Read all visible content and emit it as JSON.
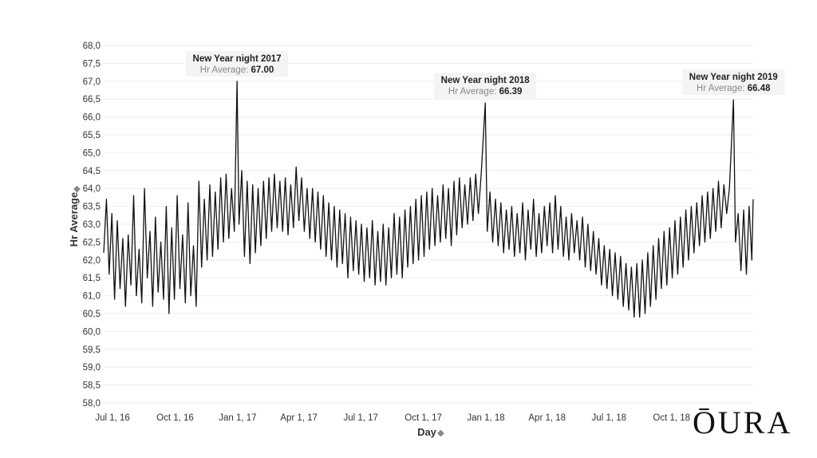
{
  "chart_data": {
    "type": "line",
    "xlabel": "Day",
    "ylabel": "Hr Average",
    "x_range": [
      "2016-06-18",
      "2019-01-29"
    ],
    "ylim": [
      58.0,
      68.0
    ],
    "y_ticks": [
      "68,0",
      "67,5",
      "67,0",
      "66,5",
      "66,0",
      "65,5",
      "65,0",
      "64,5",
      "64,0",
      "63,5",
      "63,0",
      "62,5",
      "62,0",
      "61,5",
      "61,0",
      "60,5",
      "60,0",
      "59,5",
      "59,0",
      "58,5",
      "58,0"
    ],
    "y_tick_values": [
      68.0,
      67.5,
      67.0,
      66.5,
      66.0,
      65.5,
      65.0,
      64.5,
      64.0,
      63.5,
      63.0,
      62.5,
      62.0,
      61.5,
      61.0,
      60.5,
      60.0,
      59.5,
      59.0,
      58.5,
      58.0
    ],
    "x_ticks": [
      {
        "label": "Jul 1, 16",
        "date": "2016-07-01"
      },
      {
        "label": "Oct 1, 16",
        "date": "2016-10-01"
      },
      {
        "label": "Jan 1, 17",
        "date": "2017-01-01"
      },
      {
        "label": "Apr 1, 17",
        "date": "2017-04-01"
      },
      {
        "label": "Jul 1, 17",
        "date": "2017-07-01"
      },
      {
        "label": "Oct 1, 17",
        "date": "2017-10-01"
      },
      {
        "label": "Jan 1, 18",
        "date": "2018-01-01"
      },
      {
        "label": "Apr 1, 18",
        "date": "2018-04-01"
      },
      {
        "label": "Jul 1, 18",
        "date": "2018-07-01"
      },
      {
        "label": "Oct 1, 18",
        "date": "2018-10-01"
      }
    ],
    "grid": true,
    "series": [
      {
        "values_description": "daily average heart rate with weekly oscillation",
        "points": [
          [
            "2016-06-18",
            62.2
          ],
          [
            "2016-06-22",
            63.7
          ],
          [
            "2016-06-26",
            61.6
          ],
          [
            "2016-06-30",
            63.3
          ],
          [
            "2016-07-04",
            60.9
          ],
          [
            "2016-07-08",
            63.1
          ],
          [
            "2016-07-12",
            61.2
          ],
          [
            "2016-07-16",
            62.6
          ],
          [
            "2016-07-20",
            60.7
          ],
          [
            "2016-07-24",
            62.7
          ],
          [
            "2016-07-28",
            61.3
          ],
          [
            "2016-08-01",
            63.8
          ],
          [
            "2016-08-05",
            61.0
          ],
          [
            "2016-08-09",
            62.3
          ],
          [
            "2016-08-13",
            60.8
          ],
          [
            "2016-08-17",
            64.0
          ],
          [
            "2016-08-21",
            61.5
          ],
          [
            "2016-08-25",
            62.8
          ],
          [
            "2016-08-29",
            60.7
          ],
          [
            "2016-09-02",
            63.2
          ],
          [
            "2016-09-06",
            61.1
          ],
          [
            "2016-09-10",
            62.5
          ],
          [
            "2016-09-14",
            60.9
          ],
          [
            "2016-09-18",
            63.5
          ],
          [
            "2016-09-22",
            60.5
          ],
          [
            "2016-09-26",
            62.9
          ],
          [
            "2016-09-30",
            60.9
          ],
          [
            "2016-10-04",
            63.8
          ],
          [
            "2016-10-08",
            61.2
          ],
          [
            "2016-10-12",
            62.7
          ],
          [
            "2016-10-16",
            60.8
          ],
          [
            "2016-10-20",
            63.6
          ],
          [
            "2016-10-24",
            61.0
          ],
          [
            "2016-10-28",
            62.4
          ],
          [
            "2016-11-01",
            60.7
          ],
          [
            "2016-11-05",
            64.2
          ],
          [
            "2016-11-09",
            61.8
          ],
          [
            "2016-11-13",
            63.7
          ],
          [
            "2016-11-17",
            62.0
          ],
          [
            "2016-11-21",
            64.1
          ],
          [
            "2016-11-25",
            62.1
          ],
          [
            "2016-11-29",
            63.9
          ],
          [
            "2016-12-03",
            62.3
          ],
          [
            "2016-12-07",
            64.3
          ],
          [
            "2016-12-11",
            62.5
          ],
          [
            "2016-12-15",
            64.4
          ],
          [
            "2016-12-19",
            62.6
          ],
          [
            "2016-12-23",
            64.0
          ],
          [
            "2016-12-27",
            62.8
          ],
          [
            "2016-12-31",
            67.0
          ],
          [
            "2017-01-03",
            63.0
          ],
          [
            "2017-01-07",
            64.5
          ],
          [
            "2017-01-11",
            62.1
          ],
          [
            "2017-01-15",
            64.2
          ],
          [
            "2017-01-19",
            61.9
          ],
          [
            "2017-01-23",
            64.1
          ],
          [
            "2017-01-27",
            62.2
          ],
          [
            "2017-01-31",
            64.0
          ],
          [
            "2017-02-04",
            62.4
          ],
          [
            "2017-02-08",
            64.2
          ],
          [
            "2017-02-12",
            62.6
          ],
          [
            "2017-02-16",
            64.3
          ],
          [
            "2017-02-20",
            62.8
          ],
          [
            "2017-02-24",
            64.4
          ],
          [
            "2017-02-28",
            62.9
          ],
          [
            "2017-03-04",
            64.2
          ],
          [
            "2017-03-08",
            62.8
          ],
          [
            "2017-03-12",
            64.3
          ],
          [
            "2017-03-16",
            62.7
          ],
          [
            "2017-03-20",
            64.1
          ],
          [
            "2017-03-24",
            62.9
          ],
          [
            "2017-03-28",
            64.6
          ],
          [
            "2017-04-01",
            63.1
          ],
          [
            "2017-04-05",
            64.3
          ],
          [
            "2017-04-09",
            62.8
          ],
          [
            "2017-04-13",
            64.0
          ],
          [
            "2017-04-17",
            62.6
          ],
          [
            "2017-04-21",
            64.0
          ],
          [
            "2017-04-25",
            62.5
          ],
          [
            "2017-04-29",
            63.9
          ],
          [
            "2017-05-03",
            62.3
          ],
          [
            "2017-05-07",
            63.8
          ],
          [
            "2017-05-11",
            62.1
          ],
          [
            "2017-05-15",
            63.6
          ],
          [
            "2017-05-19",
            62.0
          ],
          [
            "2017-05-23",
            63.5
          ],
          [
            "2017-05-27",
            61.8
          ],
          [
            "2017-05-31",
            63.4
          ],
          [
            "2017-06-04",
            61.9
          ],
          [
            "2017-06-08",
            63.3
          ],
          [
            "2017-06-12",
            61.5
          ],
          [
            "2017-06-16",
            63.2
          ],
          [
            "2017-06-20",
            61.7
          ],
          [
            "2017-06-24",
            63.1
          ],
          [
            "2017-06-28",
            61.6
          ],
          [
            "2017-07-02",
            63.0
          ],
          [
            "2017-07-06",
            61.4
          ],
          [
            "2017-07-10",
            62.9
          ],
          [
            "2017-07-14",
            61.5
          ],
          [
            "2017-07-18",
            63.1
          ],
          [
            "2017-07-22",
            61.3
          ],
          [
            "2017-07-26",
            62.8
          ],
          [
            "2017-07-30",
            61.4
          ],
          [
            "2017-08-03",
            63.0
          ],
          [
            "2017-08-07",
            61.3
          ],
          [
            "2017-08-11",
            62.9
          ],
          [
            "2017-08-15",
            61.5
          ],
          [
            "2017-08-19",
            63.3
          ],
          [
            "2017-08-23",
            61.6
          ],
          [
            "2017-08-27",
            63.2
          ],
          [
            "2017-08-31",
            61.5
          ],
          [
            "2017-09-04",
            63.4
          ],
          [
            "2017-09-08",
            61.8
          ],
          [
            "2017-09-12",
            63.5
          ],
          [
            "2017-09-16",
            61.9
          ],
          [
            "2017-09-20",
            63.7
          ],
          [
            "2017-09-24",
            62.0
          ],
          [
            "2017-09-28",
            63.8
          ],
          [
            "2017-10-02",
            62.1
          ],
          [
            "2017-10-06",
            63.9
          ],
          [
            "2017-10-10",
            62.3
          ],
          [
            "2017-10-14",
            64.0
          ],
          [
            "2017-10-18",
            62.4
          ],
          [
            "2017-10-22",
            63.8
          ],
          [
            "2017-10-26",
            62.5
          ],
          [
            "2017-10-30",
            64.1
          ],
          [
            "2017-11-03",
            62.6
          ],
          [
            "2017-11-07",
            64.0
          ],
          [
            "2017-11-11",
            62.4
          ],
          [
            "2017-11-15",
            64.2
          ],
          [
            "2017-11-19",
            62.7
          ],
          [
            "2017-11-23",
            64.3
          ],
          [
            "2017-11-27",
            62.9
          ],
          [
            "2017-12-01",
            64.1
          ],
          [
            "2017-12-05",
            63.0
          ],
          [
            "2017-12-09",
            64.3
          ],
          [
            "2017-12-13",
            63.1
          ],
          [
            "2017-12-17",
            64.4
          ],
          [
            "2017-12-21",
            63.3
          ],
          [
            "2017-12-25",
            64.4
          ],
          [
            "2017-12-31",
            66.39
          ],
          [
            "2018-01-03",
            62.8
          ],
          [
            "2018-01-07",
            63.9
          ],
          [
            "2018-01-11",
            62.5
          ],
          [
            "2018-01-15",
            63.7
          ],
          [
            "2018-01-19",
            62.4
          ],
          [
            "2018-01-23",
            63.6
          ],
          [
            "2018-01-27",
            62.2
          ],
          [
            "2018-01-31",
            63.4
          ],
          [
            "2018-02-04",
            62.3
          ],
          [
            "2018-02-08",
            63.5
          ],
          [
            "2018-02-12",
            62.1
          ],
          [
            "2018-02-16",
            63.3
          ],
          [
            "2018-02-20",
            62.2
          ],
          [
            "2018-02-24",
            63.6
          ],
          [
            "2018-02-28",
            62.0
          ],
          [
            "2018-03-04",
            63.4
          ],
          [
            "2018-03-08",
            62.3
          ],
          [
            "2018-03-12",
            63.7
          ],
          [
            "2018-03-16",
            62.1
          ],
          [
            "2018-03-20",
            63.3
          ],
          [
            "2018-03-24",
            62.2
          ],
          [
            "2018-03-28",
            63.5
          ],
          [
            "2018-04-01",
            62.4
          ],
          [
            "2018-04-05",
            63.6
          ],
          [
            "2018-04-09",
            62.2
          ],
          [
            "2018-04-13",
            63.8
          ],
          [
            "2018-04-17",
            62.3
          ],
          [
            "2018-04-21",
            63.5
          ],
          [
            "2018-04-25",
            62.1
          ],
          [
            "2018-04-29",
            63.2
          ],
          [
            "2018-05-03",
            62.0
          ],
          [
            "2018-05-07",
            63.3
          ],
          [
            "2018-05-11",
            62.2
          ],
          [
            "2018-05-15",
            63.1
          ],
          [
            "2018-05-19",
            62.0
          ],
          [
            "2018-05-23",
            63.2
          ],
          [
            "2018-05-27",
            61.8
          ],
          [
            "2018-05-31",
            63.0
          ],
          [
            "2018-06-04",
            61.7
          ],
          [
            "2018-06-08",
            62.8
          ],
          [
            "2018-06-12",
            61.6
          ],
          [
            "2018-06-16",
            62.6
          ],
          [
            "2018-06-20",
            61.3
          ],
          [
            "2018-06-24",
            62.4
          ],
          [
            "2018-06-28",
            61.2
          ],
          [
            "2018-07-02",
            62.3
          ],
          [
            "2018-07-06",
            61.0
          ],
          [
            "2018-07-10",
            62.2
          ],
          [
            "2018-07-14",
            60.9
          ],
          [
            "2018-07-18",
            62.1
          ],
          [
            "2018-07-22",
            60.7
          ],
          [
            "2018-07-26",
            61.9
          ],
          [
            "2018-07-30",
            60.6
          ],
          [
            "2018-08-03",
            61.8
          ],
          [
            "2018-08-07",
            60.4
          ],
          [
            "2018-08-11",
            61.9
          ],
          [
            "2018-08-15",
            60.4
          ],
          [
            "2018-08-19",
            62.0
          ],
          [
            "2018-08-23",
            60.5
          ],
          [
            "2018-08-27",
            62.2
          ],
          [
            "2018-08-31",
            60.7
          ],
          [
            "2018-09-04",
            62.4
          ],
          [
            "2018-09-08",
            60.9
          ],
          [
            "2018-09-12",
            62.6
          ],
          [
            "2018-09-16",
            61.2
          ],
          [
            "2018-09-20",
            62.8
          ],
          [
            "2018-09-24",
            61.3
          ],
          [
            "2018-09-28",
            62.9
          ],
          [
            "2018-10-02",
            61.5
          ],
          [
            "2018-10-06",
            63.1
          ],
          [
            "2018-10-10",
            61.6
          ],
          [
            "2018-10-14",
            63.2
          ],
          [
            "2018-10-18",
            61.8
          ],
          [
            "2018-10-22",
            63.4
          ],
          [
            "2018-10-26",
            62.0
          ],
          [
            "2018-10-30",
            63.5
          ],
          [
            "2018-11-03",
            62.2
          ],
          [
            "2018-11-07",
            63.6
          ],
          [
            "2018-11-11",
            62.4
          ],
          [
            "2018-11-15",
            63.8
          ],
          [
            "2018-11-19",
            62.5
          ],
          [
            "2018-11-23",
            63.9
          ],
          [
            "2018-11-27",
            62.6
          ],
          [
            "2018-12-01",
            64.0
          ],
          [
            "2018-12-05",
            62.8
          ],
          [
            "2018-12-09",
            64.2
          ],
          [
            "2018-12-13",
            62.9
          ],
          [
            "2018-12-17",
            64.1
          ],
          [
            "2018-12-21",
            63.3
          ],
          [
            "2018-12-25",
            64.0
          ],
          [
            "2018-12-31",
            66.48
          ],
          [
            "2019-01-03",
            62.5
          ],
          [
            "2019-01-07",
            63.3
          ],
          [
            "2019-01-11",
            61.7
          ],
          [
            "2019-01-15",
            63.4
          ],
          [
            "2019-01-19",
            61.6
          ],
          [
            "2019-01-23",
            63.5
          ],
          [
            "2019-01-27",
            62.0
          ],
          [
            "2019-01-29",
            63.7
          ]
        ]
      }
    ],
    "annotations": [
      {
        "title": "New Year night 2017",
        "label": "Hr Average:",
        "value": "67.00",
        "date": "2016-12-31",
        "y": 67.0
      },
      {
        "title": "New Year night 2018",
        "label": "Hr Average:",
        "value": "66.39",
        "date": "2017-12-31",
        "y": 66.39
      },
      {
        "title": "New Year night 2019",
        "label": "Hr Average:",
        "value": "66.48",
        "date": "2018-12-31",
        "y": 66.48
      }
    ]
  },
  "branding": {
    "logo_text": "ŌURA"
  },
  "colors": {
    "line": "#111111",
    "grid": "#eeeeee",
    "annotation_bg": "#f4f4f4"
  }
}
